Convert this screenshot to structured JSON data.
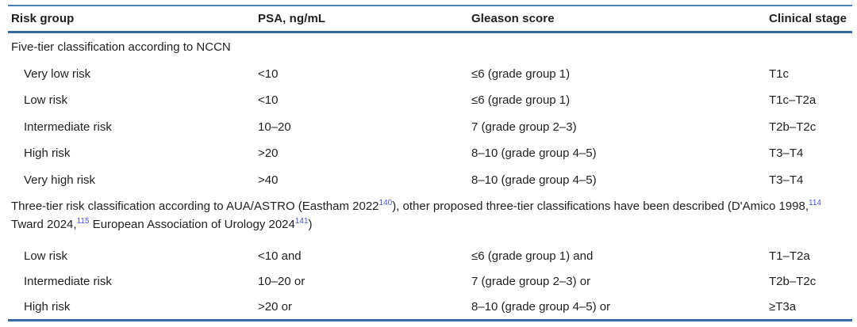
{
  "colors": {
    "rule_blue": "#3569a6",
    "rule_blue_light": "#4d80ba",
    "citation_link": "#4b4fe3",
    "text": "#1f1f1f"
  },
  "table": {
    "columns": [
      "Risk group",
      "PSA, ng/mL",
      "Gleason score",
      "Clinical stage"
    ],
    "sections": [
      {
        "title": "Five-tier classification according to NCCN",
        "rows": [
          [
            "Very low risk",
            "<10",
            "≤6 (grade group 1)",
            "T1c"
          ],
          [
            "Low risk",
            "<10",
            "≤6 (grade group 1)",
            "T1c–T2a"
          ],
          [
            "Intermediate risk",
            "10–20",
            "7 (grade group 2–3)",
            "T2b–T2c"
          ],
          [
            "High risk",
            ">20",
            "8–10 (grade group 4–5)",
            "T3–T4"
          ],
          [
            "Very high risk",
            ">40",
            "8–10 (grade group 4–5)",
            "T3–T4"
          ]
        ]
      },
      {
        "title_segments": [
          {
            "t": "Three-tier risk classification according to AUA/ASTRO (Eastham 2022"
          },
          {
            "t": "140",
            "sup": true
          },
          {
            "t": "), other proposed three-tier classifications have been described (D'Amico 1998,"
          },
          {
            "t": "114",
            "sup": true
          },
          {
            "t": " Tward 2024,"
          },
          {
            "t": "115",
            "sup": true
          },
          {
            "t": " European Association of Urology 2024"
          },
          {
            "t": "141",
            "sup": true
          },
          {
            "t": ")"
          }
        ],
        "rows": [
          [
            "Low risk",
            "<10 and",
            "≤6 (grade group 1) and",
            "T1–T2a"
          ],
          [
            "Intermediate risk",
            "10–20 or",
            "7 (grade group 2–3) or",
            "T2b–T2c"
          ],
          [
            "High risk",
            ">20 or",
            "8–10 (grade group 4–5) or",
            "≥T3a"
          ]
        ]
      }
    ]
  }
}
